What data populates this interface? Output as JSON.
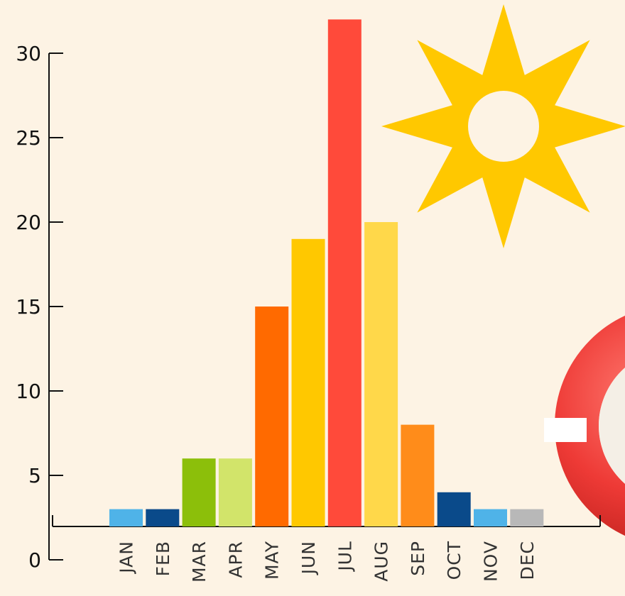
{
  "chart_data": {
    "type": "bar",
    "categories": [
      "JAN",
      "FEB",
      "MAR",
      "APR",
      "MAY",
      "JUN",
      "JUL",
      "AUG",
      "SEP",
      "OCT",
      "NOV",
      "DEC"
    ],
    "values": [
      3,
      3,
      6,
      6,
      15,
      19,
      32,
      20,
      8,
      4,
      3,
      3
    ],
    "bar_colors": [
      "#4fb3e8",
      "#0a4a8a",
      "#8cbf0a",
      "#d2e46a",
      "#ff6a00",
      "#ffc800",
      "#ff4a3a",
      "#ffd84a",
      "#ff8c1a",
      "#0a4a8a",
      "#4fb3e8",
      "#b8b8b8"
    ],
    "yticks": [
      0,
      5,
      10,
      15,
      20,
      25,
      30
    ],
    "ylim": [
      0,
      32
    ],
    "title": "",
    "xlabel": "",
    "ylabel": "",
    "grid": false,
    "legend": "none"
  },
  "decorations": {
    "sun_icon": {
      "color": "#ffc800"
    },
    "lifebuoy_icon": {
      "color": "#ee3a36",
      "band_color": "#ffffff"
    }
  }
}
